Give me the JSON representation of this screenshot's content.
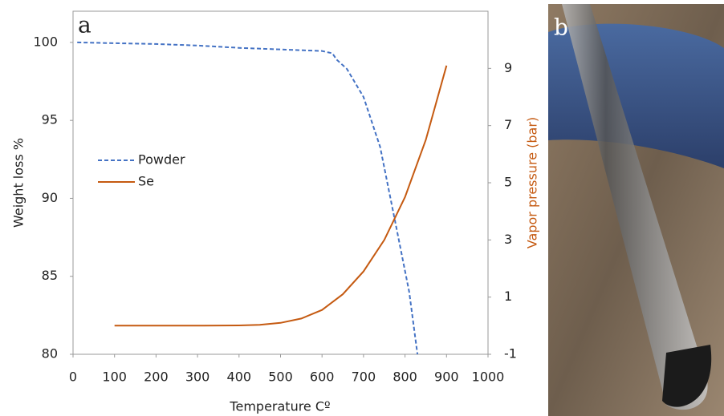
{
  "chart_data": {
    "type": "line",
    "panel_label": "a",
    "x_label": "Temperature Cº",
    "y_label": "Weight loss %",
    "y2_label": "Vapor pressure (bar)",
    "xlim": [
      0,
      1000
    ],
    "xticks": [
      0,
      100,
      200,
      300,
      400,
      500,
      600,
      700,
      800,
      900,
      1000
    ],
    "ylim": [
      80,
      102
    ],
    "yticks": [
      80,
      85,
      90,
      95,
      100
    ],
    "y2lim": [
      -1,
      11
    ],
    "y2ticks": [
      -1,
      1,
      3,
      5,
      7,
      9
    ],
    "y2_color": "#c55a11",
    "series": [
      {
        "name": "Powder",
        "color": "#4472c4",
        "dashed": true,
        "x": [
          10,
          100,
          200,
          300,
          400,
          500,
          600,
          625,
          635,
          660,
          700,
          740,
          780,
          810,
          830
        ],
        "values": [
          100,
          99.95,
          99.9,
          99.8,
          99.65,
          99.55,
          99.45,
          99.3,
          98.9,
          98.3,
          96.5,
          93.3,
          88,
          84,
          80
        ]
      },
      {
        "name": "Se",
        "color": "#c55a11",
        "axis": "y2",
        "x": [
          100,
          200,
          300,
          400,
          450,
          500,
          550,
          600,
          650,
          700,
          750,
          800,
          850,
          900
        ],
        "values": [
          0,
          0,
          0,
          0.01,
          0.03,
          0.1,
          0.25,
          0.55,
          1.1,
          1.9,
          3.0,
          4.5,
          6.5,
          9.1
        ]
      }
    ]
  },
  "photo": {
    "label": "b"
  }
}
